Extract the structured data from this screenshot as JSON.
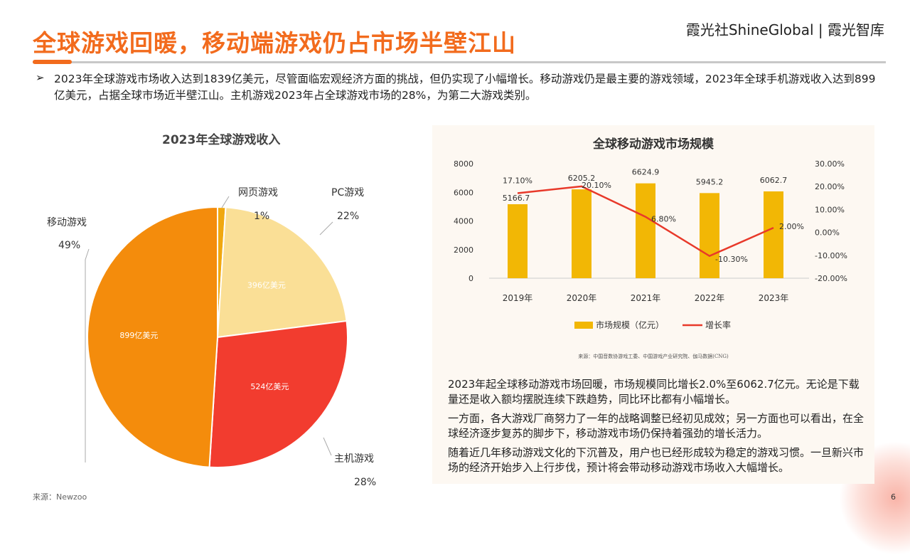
{
  "header": {
    "title": "全球游戏回暖，移动端游戏仍占市场半壁江山",
    "brand": "霞光社ShineGlobal | 霞光智库"
  },
  "intro": {
    "bullet": "➢",
    "text": "2023年全球游戏市场收入达到1839亿美元，尽管面临宏观经济方面的挑战，但仍实现了小幅增长。移动游戏仍是最主要的游戏领域，2023年全球手机游戏收入达到899亿美元，占据全球市场近半壁江山。主机游戏2023年占全球游戏市场的28%，为第二大游戏类别。"
  },
  "chart_data": [
    {
      "type": "pie",
      "title": "2023年全球游戏收入",
      "slices": [
        {
          "name": "网页游戏",
          "percent": 1,
          "label": "1%",
          "value_label": "",
          "color": "#f0a810"
        },
        {
          "name": "PC游戏",
          "percent": 22,
          "label": "22%",
          "value_label": "396亿美元",
          "color": "#fadf96"
        },
        {
          "name": "主机游戏",
          "percent": 28,
          "label": "28%",
          "value_label": "524亿美元",
          "color": "#f23c2f"
        },
        {
          "name": "移动游戏",
          "percent": 49,
          "label": "49%",
          "value_label": "899亿美元",
          "color": "#f48c0c"
        }
      ]
    },
    {
      "type": "bar+line",
      "title": "全球移动游戏市场规模",
      "categories": [
        "2019年",
        "2020年",
        "2021年",
        "2022年",
        "2023年"
      ],
      "series": [
        {
          "name": "市场规模（亿元）",
          "type": "bar",
          "axis": "left",
          "values": [
            5166.7,
            6205.2,
            6624.9,
            5945.2,
            6062.7
          ],
          "labels": [
            "5166.7",
            "6205.2",
            "6624.9",
            "5945.2",
            "6062.7"
          ],
          "color": "#f2b705"
        },
        {
          "name": "增长率",
          "type": "line",
          "axis": "right",
          "values": [
            17.1,
            20.1,
            6.8,
            -10.3,
            2.0
          ],
          "labels": [
            "17.10%",
            "20.10%",
            "6.80%",
            "-10.30%",
            "2.00%"
          ],
          "color": "#e8392a"
        }
      ],
      "left_axis": {
        "range": [
          0,
          8000
        ],
        "ticks": [
          "0",
          "2000",
          "4000",
          "6000",
          "8000"
        ]
      },
      "right_axis": {
        "range": [
          -20,
          30
        ],
        "ticks": [
          "-20.00%",
          "-10.00%",
          "0.00%",
          "10.00%",
          "20.00%",
          "30.00%"
        ]
      },
      "legend": "bottom",
      "grid": false,
      "source": "来源：中国音数协游戏工委、中国游戏产业研究院、伽马数据(CNG)"
    }
  ],
  "panel": {
    "paragraphs": [
      "2023年起全球移动游戏市场回暖，市场规模同比增长2.0%至6062.7亿元。无论是下载量还是收入额均摆脱连续下跌趋势，同比环比都有小幅增长。",
      "一方面，各大游戏厂商努力了一年的战略调整已经初见成效；另一方面也可以看出，在全球经济逐步复苏的脚步下，移动游戏市场仍保持着强劲的增长活力。",
      "随着近几年移动游戏文化的下沉普及，用户也已经形成较为稳定的游戏习惯。一旦新兴市场的经济开始步入上行步伐，预计将会带动移动游戏市场收入大幅增长。"
    ]
  },
  "footer": {
    "source": "来源：Newzoo",
    "page": "6"
  }
}
